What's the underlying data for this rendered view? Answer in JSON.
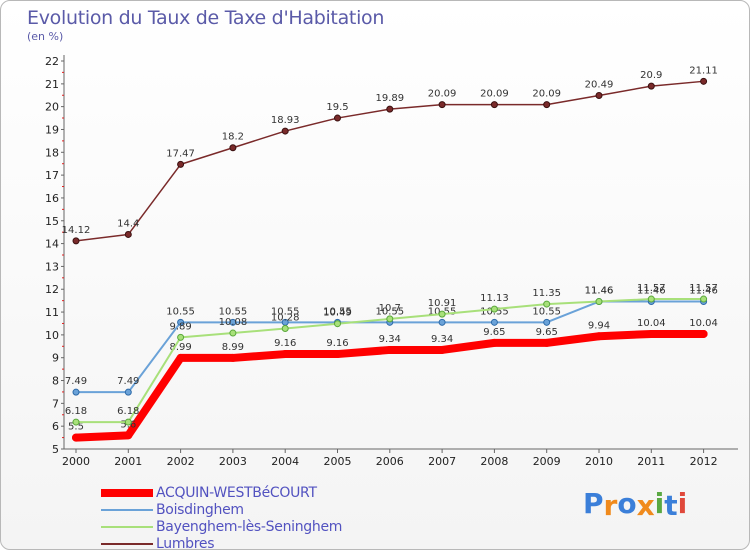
{
  "header": {
    "title": "Evolution du Taux de Taxe d'Habitation",
    "subtitle": "(en %)"
  },
  "logo": {
    "text": "Proxiti",
    "letters": [
      "P",
      "r",
      "o",
      "x",
      "i",
      "t",
      "i"
    ],
    "colors": [
      "#3b7fd9",
      "#f08a1c",
      "#3b7fd9",
      "#f08a1c",
      "#5aa842",
      "#3b7fd9",
      "#e0483a"
    ]
  },
  "chart_data": {
    "type": "line",
    "title": "Evolution du Taux de Taxe d'Habitation",
    "ylabel": "(en %)",
    "xlabel": "",
    "categories": [
      "2000",
      "2001",
      "2002",
      "2003",
      "2004",
      "2005",
      "2006",
      "2007",
      "2008",
      "2009",
      "2010",
      "2011",
      "2012"
    ],
    "yticks": [
      "5",
      "6",
      "7",
      "8",
      "9",
      "10",
      "11",
      "12",
      "13",
      "14",
      "15",
      "16",
      "17",
      "18",
      "19",
      "20",
      "21",
      "22"
    ],
    "ylim": [
      5,
      22
    ],
    "grid": false,
    "legend_position": "bottom-left",
    "series": [
      {
        "name": "ACQUIN-WESTBéCOURT",
        "color": "#ff0000",
        "width": 8,
        "marker_stroke": "#ff0000",
        "values": [
          5.5,
          5.6,
          8.99,
          8.99,
          9.16,
          9.16,
          9.34,
          9.34,
          9.65,
          9.65,
          9.94,
          10.04,
          10.04
        ],
        "labels": [
          "5.5",
          "5.6",
          "8.99",
          "8.99",
          "9.16",
          "9.16",
          "9.34",
          "9.34",
          "9.65",
          "9.65",
          "9.94",
          "10.04",
          "10.04"
        ]
      },
      {
        "name": "Boisdinghem",
        "color": "#6aa2d8",
        "width": 2,
        "marker_stroke": "#2d6aa8",
        "values": [
          7.49,
          7.49,
          10.55,
          10.55,
          10.55,
          10.55,
          10.55,
          10.55,
          10.55,
          10.55,
          11.46,
          11.46,
          11.46
        ],
        "labels": [
          "7.49",
          "7.49",
          "10.55",
          "10.55",
          "10.55",
          "10.55",
          "10.55",
          "10.55",
          "10.55",
          "10.55",
          "11.46",
          "11.46",
          "11.46"
        ]
      },
      {
        "name": "Bayenghem-lès-Seninghem",
        "color": "#a8e07a",
        "width": 2,
        "marker_stroke": "#5aa83a",
        "values": [
          6.18,
          6.18,
          9.89,
          10.08,
          10.28,
          10.49,
          10.7,
          10.91,
          11.13,
          11.35,
          11.46,
          11.57,
          11.57
        ],
        "labels": [
          "6.18",
          "6.18",
          "9.89",
          "10.08",
          "10.28",
          "10.49",
          "10.7",
          "10.91",
          "11.13",
          "11.35",
          "11.46",
          "11.57",
          "11.57"
        ]
      },
      {
        "name": "Lumbres",
        "color": "#7a2a2a",
        "width": 1.5,
        "marker_stroke": "#3a1010",
        "values": [
          14.12,
          14.4,
          17.47,
          18.2,
          18.93,
          19.5,
          19.89,
          20.09,
          20.09,
          20.09,
          20.49,
          20.9,
          21.11
        ],
        "labels": [
          "14.12",
          "14.4",
          "17.47",
          "18.2",
          "18.93",
          "19.5",
          "19.89",
          "20.09",
          "20.09",
          "20.09",
          "20.49",
          "20.9",
          "21.11"
        ]
      }
    ]
  }
}
